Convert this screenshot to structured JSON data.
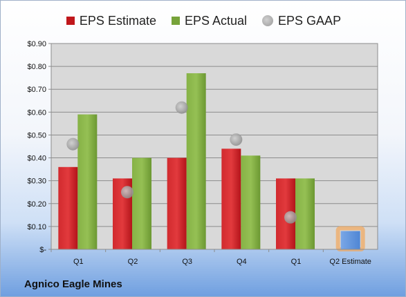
{
  "chart_data": {
    "type": "bar",
    "title": "",
    "xlabel": "",
    "ylabel": "",
    "categories": [
      "Q1",
      "Q2",
      "Q3",
      "Q4",
      "Q1",
      "Q2 Estimate"
    ],
    "series": [
      {
        "name": "EPS Estimate",
        "color": "#c0171b",
        "values": [
          0.36,
          0.31,
          0.4,
          0.44,
          0.31,
          null
        ]
      },
      {
        "name": "EPS Actual",
        "color": "#77a33a",
        "values": [
          0.59,
          0.4,
          0.77,
          0.41,
          0.31,
          null
        ]
      },
      {
        "name": "EPS GAAP",
        "color": "#a6a6a6",
        "marker": "circle",
        "values": [
          0.46,
          0.25,
          0.62,
          0.48,
          0.14,
          null
        ]
      }
    ],
    "q2_estimate_value": 0.08,
    "q2_estimate_color": "#5b8fd6",
    "ylim": [
      0,
      0.9
    ],
    "yticks": [
      "$-",
      "$0.10",
      "$0.20",
      "$0.30",
      "$0.40",
      "$0.50",
      "$0.60",
      "$0.70",
      "$0.80",
      "$0.90"
    ],
    "legend_position": "top",
    "grid": true,
    "company": "Agnico Eagle Mines"
  }
}
